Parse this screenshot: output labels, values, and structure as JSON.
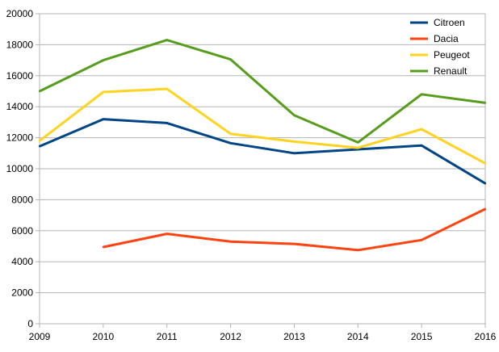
{
  "chart_data": {
    "type": "line",
    "title": "",
    "xlabel": "",
    "ylabel": "",
    "x": [
      "2009",
      "2010",
      "2011",
      "2012",
      "2013",
      "2014",
      "2015",
      "2016"
    ],
    "ylim": [
      0,
      20000
    ],
    "yticks": [
      0,
      2000,
      4000,
      6000,
      8000,
      10000,
      12000,
      14000,
      16000,
      18000,
      20000
    ],
    "grid": "horizontal",
    "legend_position": "top-right",
    "series": [
      {
        "name": "Citroen",
        "color": "#004586",
        "values": [
          11450,
          13200,
          12950,
          11650,
          11000,
          11250,
          11500,
          9050
        ]
      },
      {
        "name": "Dacia",
        "color": "#ff420e",
        "values": [
          null,
          4950,
          5800,
          5300,
          5150,
          4750,
          5400,
          7400
        ]
      },
      {
        "name": "Peugeot",
        "color": "#ffd320",
        "values": [
          11800,
          14950,
          15150,
          12250,
          11750,
          11350,
          12550,
          10350
        ]
      },
      {
        "name": "Renault",
        "color": "#579d1c",
        "values": [
          15000,
          17000,
          18300,
          17050,
          13450,
          11700,
          14800,
          14250
        ]
      }
    ]
  }
}
